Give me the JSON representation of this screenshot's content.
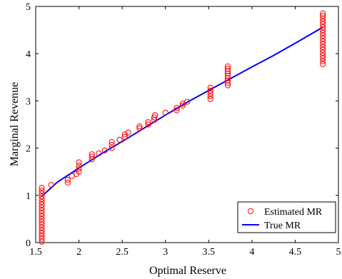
{
  "chart_data": {
    "type": "scatter",
    "xlabel": "Optimal Reserve",
    "ylabel": "Marginal Revenue",
    "xlim": [
      1.5,
      5
    ],
    "ylim": [
      0,
      5
    ],
    "xticks": [
      1.5,
      2,
      2.5,
      3,
      3.5,
      4,
      4.5,
      5
    ],
    "xtick_labels": [
      "1.5",
      "2",
      "2.5",
      "3",
      "3.5",
      "4",
      "4.5",
      "5"
    ],
    "yticks": [
      0,
      1,
      2,
      3,
      4,
      5
    ],
    "ytick_labels": [
      "0",
      "1",
      "2",
      "3",
      "4",
      "5"
    ],
    "grid": false,
    "legend_position": "bottom-right",
    "series": [
      {
        "name": "Estimated MR",
        "kind": "scatter",
        "marker": "open-circle",
        "color": "#ff0000",
        "points": [
          [
            1.57,
            0.02
          ],
          [
            1.57,
            0.08
          ],
          [
            1.57,
            0.14
          ],
          [
            1.57,
            0.2
          ],
          [
            1.57,
            0.26
          ],
          [
            1.57,
            0.32
          ],
          [
            1.57,
            0.38
          ],
          [
            1.57,
            0.44
          ],
          [
            1.57,
            0.5
          ],
          [
            1.57,
            0.56
          ],
          [
            1.57,
            0.62
          ],
          [
            1.57,
            0.68
          ],
          [
            1.57,
            0.74
          ],
          [
            1.57,
            0.8
          ],
          [
            1.57,
            0.86
          ],
          [
            1.57,
            0.92
          ],
          [
            1.57,
            0.98
          ],
          [
            1.57,
            1.04
          ],
          [
            1.57,
            1.1
          ],
          [
            1.57,
            1.16
          ],
          [
            1.68,
            1.22
          ],
          [
            1.87,
            1.27
          ],
          [
            1.87,
            1.33
          ],
          [
            1.92,
            1.41
          ],
          [
            1.97,
            1.45
          ],
          [
            2.0,
            1.5
          ],
          [
            2.0,
            1.57
          ],
          [
            2.0,
            1.63
          ],
          [
            2.0,
            1.7
          ],
          [
            2.15,
            1.76
          ],
          [
            2.15,
            1.82
          ],
          [
            2.15,
            1.87
          ],
          [
            2.23,
            1.89
          ],
          [
            2.3,
            1.95
          ],
          [
            2.38,
            2.0
          ],
          [
            2.38,
            2.07
          ],
          [
            2.38,
            2.13
          ],
          [
            2.47,
            2.18
          ],
          [
            2.53,
            2.24
          ],
          [
            2.53,
            2.29
          ],
          [
            2.57,
            2.33
          ],
          [
            2.7,
            2.42
          ],
          [
            2.7,
            2.46
          ],
          [
            2.8,
            2.5
          ],
          [
            2.8,
            2.55
          ],
          [
            2.87,
            2.6
          ],
          [
            2.87,
            2.65
          ],
          [
            2.88,
            2.7
          ],
          [
            3.0,
            2.75
          ],
          [
            3.13,
            2.8
          ],
          [
            3.13,
            2.85
          ],
          [
            3.2,
            2.9
          ],
          [
            3.2,
            2.94
          ],
          [
            3.25,
            2.98
          ],
          [
            3.52,
            3.04
          ],
          [
            3.52,
            3.1
          ],
          [
            3.52,
            3.16
          ],
          [
            3.52,
            3.22
          ],
          [
            3.52,
            3.28
          ],
          [
            3.72,
            3.33
          ],
          [
            3.72,
            3.38
          ],
          [
            3.72,
            3.43
          ],
          [
            3.72,
            3.48
          ],
          [
            3.72,
            3.53
          ],
          [
            3.72,
            3.58
          ],
          [
            3.72,
            3.63
          ],
          [
            3.72,
            3.68
          ],
          [
            3.72,
            3.73
          ],
          [
            4.82,
            3.78
          ],
          [
            4.82,
            3.84
          ],
          [
            4.82,
            3.9
          ],
          [
            4.82,
            3.96
          ],
          [
            4.82,
            4.02
          ],
          [
            4.82,
            4.08
          ],
          [
            4.82,
            4.14
          ],
          [
            4.82,
            4.2
          ],
          [
            4.82,
            4.26
          ],
          [
            4.82,
            4.32
          ],
          [
            4.82,
            4.38
          ],
          [
            4.82,
            4.44
          ],
          [
            4.82,
            4.5
          ],
          [
            4.82,
            4.56
          ],
          [
            4.82,
            4.62
          ],
          [
            4.82,
            4.68
          ],
          [
            4.82,
            4.74
          ],
          [
            4.82,
            4.8
          ],
          [
            4.82,
            4.85
          ]
        ]
      },
      {
        "name": "True MR",
        "kind": "line",
        "color": "#0000ff",
        "points": [
          [
            1.57,
            0.98
          ],
          [
            1.75,
            1.28
          ],
          [
            2.0,
            1.58
          ],
          [
            2.25,
            1.87
          ],
          [
            2.5,
            2.14
          ],
          [
            2.75,
            2.42
          ],
          [
            3.0,
            2.7
          ],
          [
            3.25,
            2.97
          ],
          [
            3.5,
            3.22
          ],
          [
            3.75,
            3.47
          ],
          [
            4.0,
            3.72
          ],
          [
            4.25,
            3.96
          ],
          [
            4.5,
            4.22
          ],
          [
            4.82,
            4.56
          ]
        ]
      }
    ]
  }
}
